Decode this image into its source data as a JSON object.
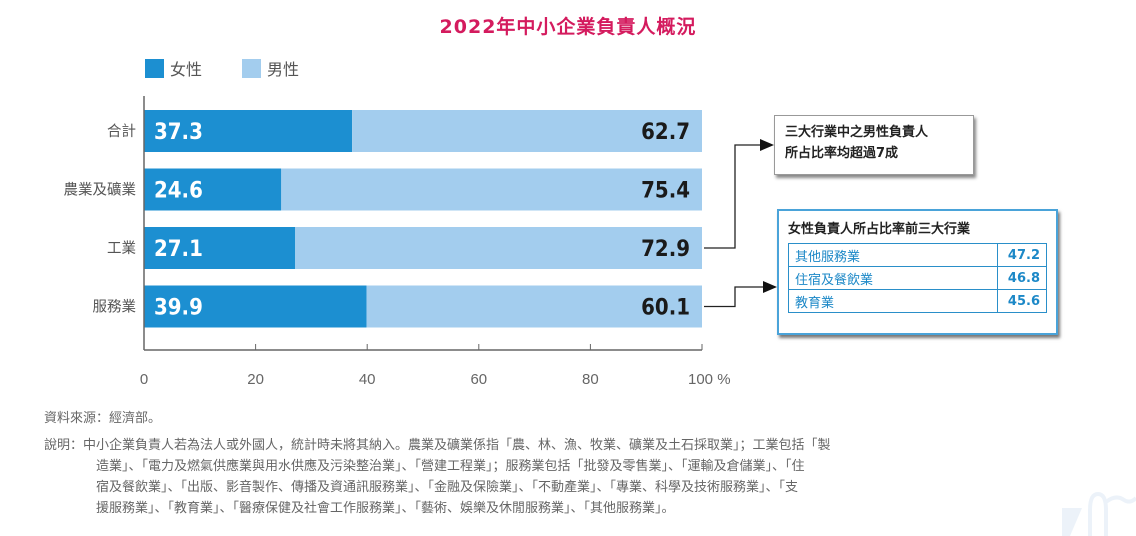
{
  "chart_data": {
    "type": "bar",
    "stacked": true,
    "orientation": "horizontal",
    "title": "2022年中小企業負責人概況",
    "categories": [
      "合計",
      "農業及礦業",
      "工業",
      "服務業"
    ],
    "series": [
      {
        "name": "女性",
        "color": "#1c8fd1",
        "values": [
          37.3,
          24.6,
          27.1,
          39.9
        ]
      },
      {
        "name": "男性",
        "color": "#a3cdee",
        "values": [
          62.7,
          75.4,
          72.9,
          60.1
        ]
      }
    ],
    "xlabel": "",
    "ylabel": "",
    "xlim": [
      0,
      100
    ],
    "x_ticks": [
      0,
      20,
      40,
      60,
      80,
      100
    ],
    "x_tick_labels": [
      "0",
      "20",
      "40",
      "60",
      "80",
      "100 %"
    ],
    "legend_position": "top-left",
    "grid": false,
    "annotations": [
      {
        "text_lines": [
          "三大行業中之男性負責人",
          "所占比率均超過7成"
        ],
        "points_to": "工業"
      },
      {
        "header": "女性負責人所占比率前三大行業",
        "points_to": "服務業",
        "rows": [
          {
            "label": "其他服務業",
            "value": "47.2"
          },
          {
            "label": "住宿及餐飲業",
            "value": "46.8"
          },
          {
            "label": "教育業",
            "value": "45.6"
          }
        ]
      }
    ]
  },
  "notes": {
    "source": "資料來源：經濟部。",
    "explanation_label": "說明：",
    "explanation_lines": [
      "中小企業負責人若為法人或外國人，統計時未將其納入。農業及礦業係指「農、林、漁、牧業、礦業及土石採取業」；工業包括「製",
      "造業」、「電力及燃氣供應業與用水供應及污染整治業」、「營建工程業」；服務業包括「批發及零售業」、「運輸及倉儲業」、「住",
      "宿及餐飲業」、「出版、影音製作、傳播及資通訊服務業」、「金融及保險業」、「不動產業」、「專業、科學及技術服務業」、「支",
      "援服務業」、「教育業」、「醫療保健及社會工作服務業」、「藝術、娛樂及休閒服務業」、「其他服務業」。"
    ]
  }
}
